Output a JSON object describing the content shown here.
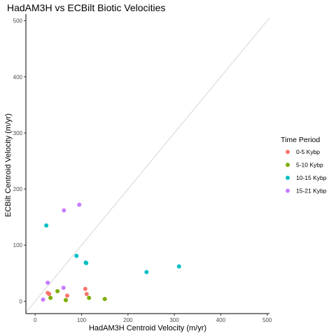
{
  "chart_data": {
    "type": "scatter",
    "title": "HadAM3H vs ECBilt Biotic Velocities",
    "xlabel": "HadAM3H Centroid Velocity (m/yr)",
    "ylabel": "ECBilt Centroid Velocity (m/yr)",
    "xlim": [
      -20,
      505
    ],
    "ylim": [
      -22,
      512
    ],
    "xticks": [
      0,
      100,
      200,
      300,
      400,
      500
    ],
    "yticks": [
      0,
      100,
      200,
      300,
      400,
      500
    ],
    "grid": false,
    "reference_line": "y = x",
    "legend": {
      "title": "Time Period",
      "placement": "right"
    },
    "series": [
      {
        "name": "0-5 Kybp",
        "color": "#F8766D",
        "points": [
          [
            27,
            15
          ],
          [
            30,
            13
          ],
          [
            69,
            10
          ],
          [
            108,
            22
          ],
          [
            111,
            13
          ]
        ]
      },
      {
        "name": "5-10 Kybp",
        "color": "#7CAE00",
        "points": [
          [
            33,
            6
          ],
          [
            48,
            18
          ],
          [
            66,
            2
          ],
          [
            116,
            6
          ],
          [
            150,
            4
          ]
        ]
      },
      {
        "name": "10-15 Kybp",
        "color": "#00BFC4",
        "points": [
          [
            24,
            135
          ],
          [
            89,
            81
          ],
          [
            109,
            69
          ],
          [
            110,
            68
          ],
          [
            240,
            52
          ],
          [
            310,
            62
          ]
        ]
      },
      {
        "name": "15-21 Kybp",
        "color": "#C77CFF",
        "points": [
          [
            17,
            3
          ],
          [
            27,
            33
          ],
          [
            61,
            24
          ],
          [
            62,
            162
          ],
          [
            95,
            172
          ]
        ]
      }
    ]
  }
}
